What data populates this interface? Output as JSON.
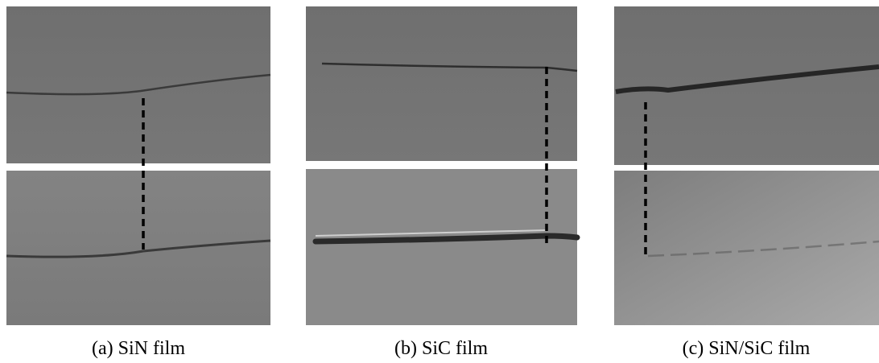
{
  "figure": {
    "panels": [
      {
        "caption": "(a) SiN film"
      },
      {
        "caption": "(b) SiC film"
      },
      {
        "caption": "(c) SiN/SiC film"
      }
    ]
  }
}
